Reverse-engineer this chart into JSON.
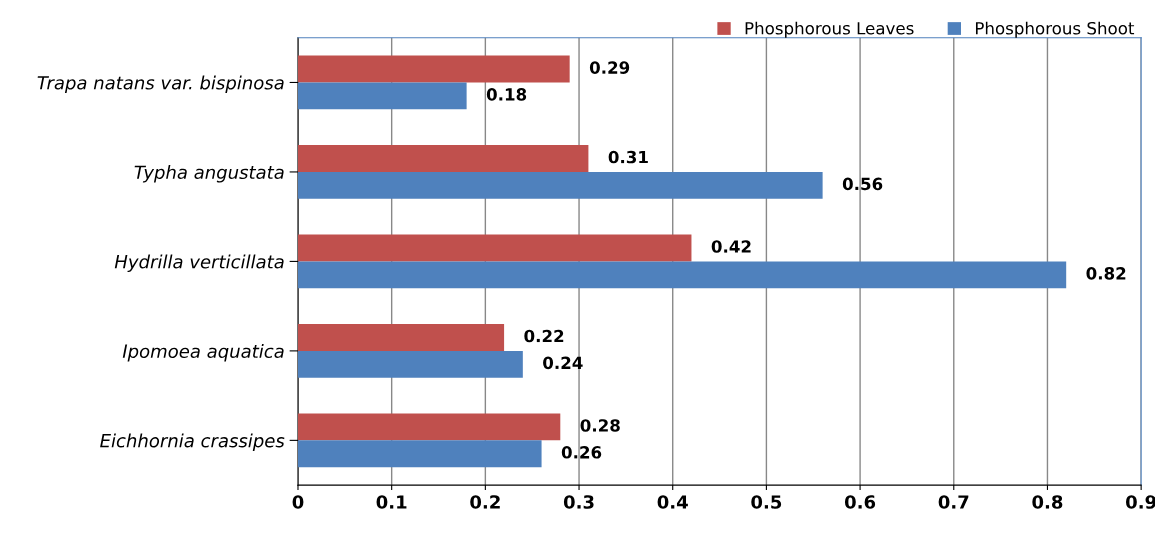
{
  "chart_data": {
    "type": "bar",
    "orientation": "horizontal",
    "categories": [
      "Trapa natans var. bispinosa",
      "Typha angustata",
      "Hydrilla verticillata",
      "Ipomoea aquatica",
      "Eichhornia crassipes"
    ],
    "series": [
      {
        "name": "Phosphorous Leaves",
        "color": "#c0504d",
        "values": [
          0.29,
          0.31,
          0.42,
          0.22,
          0.28
        ]
      },
      {
        "name": "Phosphorous Shoot",
        "color": "#4f81bd",
        "values": [
          0.18,
          0.56,
          0.82,
          0.24,
          0.26
        ]
      }
    ],
    "xlim": [
      0,
      0.9
    ],
    "xticks": [
      0,
      0.1,
      0.2,
      0.3,
      0.4,
      0.5,
      0.6,
      0.7,
      0.8,
      0.9
    ],
    "grid": "x",
    "legend": "top right",
    "data_labels": true
  }
}
